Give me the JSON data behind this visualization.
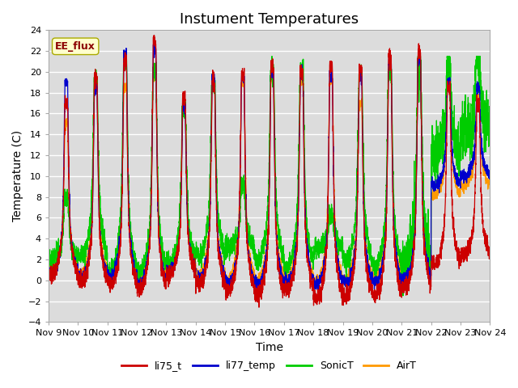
{
  "title": "Instument Temperatures",
  "xlabel": "Time",
  "ylabel": "Temperature (C)",
  "ylim": [
    -4,
    24
  ],
  "xlim_days": [
    9,
    24
  ],
  "xtick_labels": [
    "Nov 9",
    "Nov 10",
    "Nov 11",
    "Nov 12",
    "Nov 13",
    "Nov 14",
    "Nov 15",
    "Nov 16",
    "Nov 17",
    "Nov 18",
    "Nov 19",
    "Nov 20",
    "Nov 21",
    "Nov 22",
    "Nov 23",
    "Nov 24"
  ],
  "colors": {
    "li75_t": "#cc0000",
    "li77_temp": "#0000cc",
    "SonicT": "#00cc00",
    "AirT": "#ff9900"
  },
  "annotation_text": "EE_flux",
  "annotation_color": "#8b0000",
  "annotation_bg": "#ffffcc",
  "bg_color": "#dcdcdc",
  "title_fontsize": 13,
  "axis_fontsize": 10,
  "tick_fontsize": 8,
  "legend_fontsize": 9,
  "linewidth": 0.9
}
